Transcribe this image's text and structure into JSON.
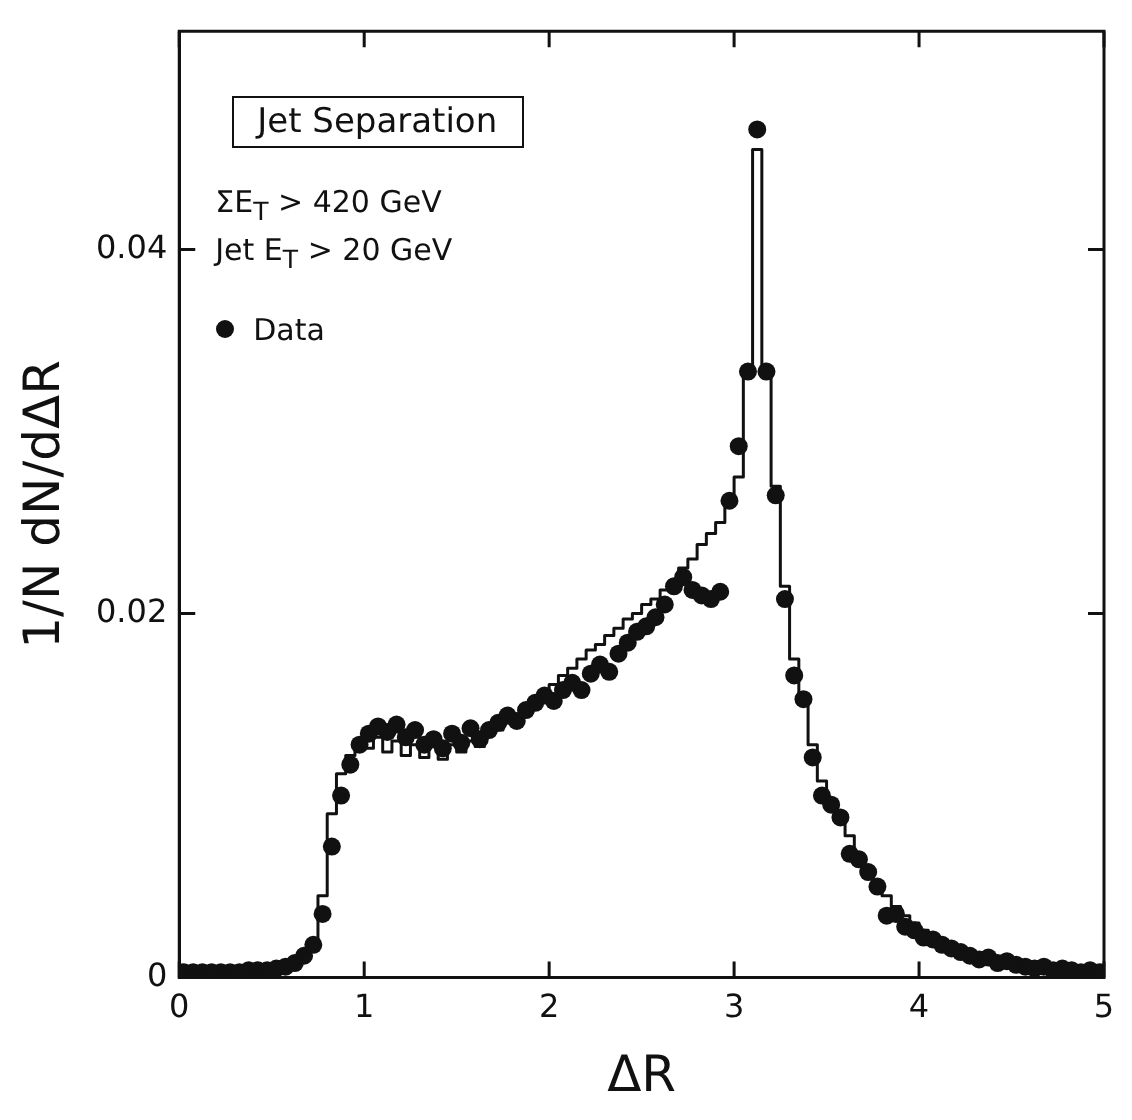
{
  "chart_data": {
    "type": "scatter",
    "xlabel": "ΔR",
    "ylabel": "1/N dN/dΔR",
    "annotations": [
      "Jet Separation",
      "ΣE$_{T}$ > 420 GeV",
      "Jet E$_{T}$ > 20 GeV"
    ],
    "x": [
      0.025,
      0.075,
      0.125,
      0.175,
      0.225,
      0.275,
      0.325,
      0.375,
      0.425,
      0.475,
      0.525,
      0.575,
      0.625,
      0.675,
      0.725,
      0.775,
      0.825,
      0.875,
      0.925,
      0.975,
      1.025,
      1.075,
      1.125,
      1.175,
      1.225,
      1.275,
      1.325,
      1.375,
      1.425,
      1.475,
      1.525,
      1.575,
      1.625,
      1.675,
      1.725,
      1.775,
      1.825,
      1.875,
      1.925,
      1.975,
      2.025,
      2.075,
      2.125,
      2.175,
      2.225,
      2.275,
      2.325,
      2.375,
      2.425,
      2.475,
      2.525,
      2.575,
      2.625,
      2.675,
      2.725,
      2.775,
      2.825,
      2.875,
      2.925,
      2.975,
      3.025,
      3.075,
      3.125,
      3.175,
      3.225,
      3.275,
      3.325,
      3.375,
      3.425,
      3.475,
      3.525,
      3.575,
      3.625,
      3.675,
      3.725,
      3.775,
      3.825,
      3.875,
      3.925,
      3.975,
      4.025,
      4.075,
      4.125,
      4.175,
      4.225,
      4.275,
      4.325,
      4.375,
      4.425,
      4.475,
      4.525,
      4.575,
      4.625,
      4.675,
      4.725,
      4.775,
      4.825,
      4.875,
      4.925,
      4.975
    ],
    "series": [
      {
        "name": "Data",
        "marker": "circle",
        "color": "#111111",
        "values": [
          0.0003,
          0.0003,
          0.0003,
          0.0003,
          0.0003,
          0.0003,
          0.0003,
          0.0004,
          0.0004,
          0.0004,
          0.0005,
          0.0006,
          0.0008,
          0.0012,
          0.0018,
          0.0035,
          0.0072,
          0.01,
          0.0117,
          0.0128,
          0.0134,
          0.0138,
          0.0135,
          0.0139,
          0.0132,
          0.0136,
          0.0128,
          0.0131,
          0.0126,
          0.0134,
          0.0129,
          0.0137,
          0.0131,
          0.0136,
          0.014,
          0.0144,
          0.0141,
          0.0147,
          0.0151,
          0.0155,
          0.0152,
          0.0158,
          0.0162,
          0.0158,
          0.0167,
          0.0172,
          0.0168,
          0.0178,
          0.0184,
          0.019,
          0.0193,
          0.0198,
          0.0205,
          0.0215,
          0.022,
          0.0213,
          0.021,
          0.0208,
          0.0212,
          0.0262,
          0.0292,
          0.0333,
          0.0466,
          0.0333,
          0.0265,
          0.0208,
          0.0166,
          0.0153,
          0.0121,
          0.01,
          0.0095,
          0.0088,
          0.0068,
          0.0065,
          0.0058,
          0.005,
          0.0034,
          0.0035,
          0.0028,
          0.0026,
          0.0022,
          0.0021,
          0.0018,
          0.0016,
          0.0014,
          0.0012,
          0.001,
          0.0011,
          0.0008,
          0.0009,
          0.0007,
          0.0006,
          0.0005,
          0.0006,
          0.0004,
          0.0005,
          0.0004,
          0.0003,
          0.0004,
          0.0003
        ]
      },
      {
        "type": "step",
        "color": "#111111",
        "values": [
          0.0002,
          0.0002,
          0.0002,
          0.0002,
          0.0002,
          0.0002,
          0.0002,
          0.0002,
          0.0002,
          0.0002,
          0.0003,
          0.0005,
          0.0008,
          0.0013,
          0.002,
          0.0045,
          0.009,
          0.0112,
          0.0122,
          0.0128,
          0.0126,
          0.0132,
          0.0124,
          0.013,
          0.0122,
          0.0128,
          0.0121,
          0.0127,
          0.012,
          0.0128,
          0.0124,
          0.013,
          0.0127,
          0.0133,
          0.0136,
          0.014,
          0.0144,
          0.0148,
          0.0153,
          0.0157,
          0.0161,
          0.0166,
          0.017,
          0.0175,
          0.018,
          0.0183,
          0.0188,
          0.0192,
          0.0197,
          0.02,
          0.0205,
          0.0208,
          0.0213,
          0.0218,
          0.0225,
          0.023,
          0.0238,
          0.0244,
          0.025,
          0.0262,
          0.0275,
          0.0335,
          0.0455,
          0.0335,
          0.027,
          0.0215,
          0.0175,
          0.015,
          0.0128,
          0.0108,
          0.0098,
          0.009,
          0.0078,
          0.0068,
          0.006,
          0.0052,
          0.0045,
          0.0039,
          0.0034,
          0.003,
          0.0026,
          0.0023,
          0.002,
          0.0018,
          0.0016,
          0.0014,
          0.0012,
          0.0011,
          0.001,
          0.0009,
          0.0008,
          0.0007,
          0.0006,
          0.0006,
          0.0005,
          0.0005,
          0.0004,
          0.0004,
          0.0003,
          0.0003
        ]
      }
    ],
    "xlim": [
      0,
      5
    ],
    "xticks": [
      0,
      1,
      2,
      3,
      4,
      5
    ],
    "ylim": [
      0,
      0.052
    ],
    "yticks": [
      0,
      0.02,
      0.04
    ],
    "grid": false,
    "legend": "top left"
  }
}
